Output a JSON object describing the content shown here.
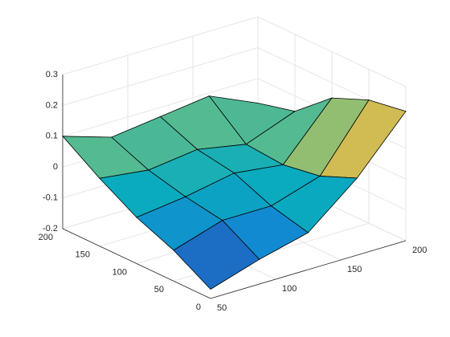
{
  "chart_data": {
    "type": "surface",
    "x": [
      50,
      87.5,
      125,
      162.5,
      200
    ],
    "y": [
      0,
      50,
      100,
      150,
      200
    ],
    "z": [
      [
        -0.17,
        -0.12,
        -0.08,
        0.05,
        0.22
      ],
      [
        -0.1,
        -0.05,
        -0.05,
        0.0,
        0.2
      ],
      [
        -0.05,
        -0.03,
        0.0,
        -0.02,
        0.15
      ],
      [
        0.02,
        0.0,
        0.02,
        -0.01,
        0.05
      ],
      [
        0.1,
        0.05,
        0.07,
        0.09,
        0.02
      ]
    ],
    "xlim": [
      50,
      200
    ],
    "xticks": [
      50,
      100,
      150,
      200
    ],
    "ylim": [
      0,
      200
    ],
    "yticks": [
      0,
      50,
      100,
      150,
      200
    ],
    "zlim": [
      -0.2,
      0.3
    ],
    "zticks": [
      -0.2,
      -0.1,
      0,
      0.1,
      0.2,
      0.3
    ],
    "colormap": "parula",
    "grid": true
  }
}
